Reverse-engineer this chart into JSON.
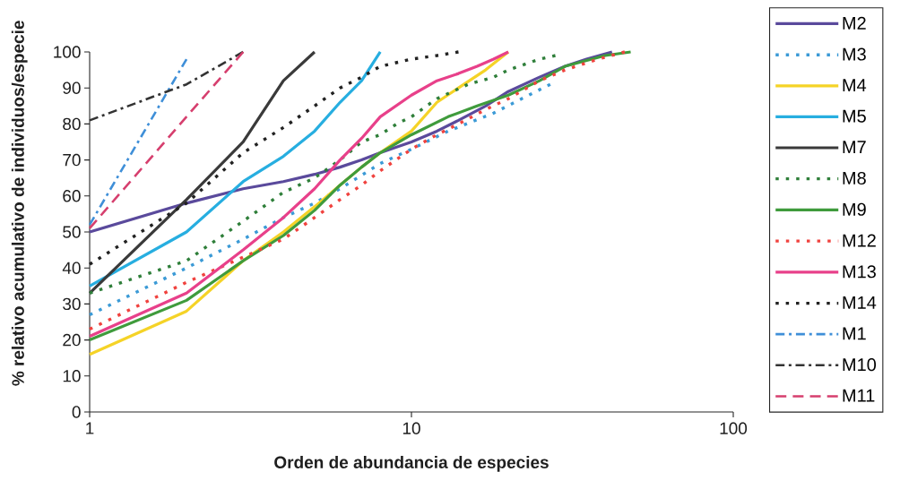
{
  "chart_data": {
    "type": "line",
    "xlabel": "Orden de abundancia de especies",
    "ylabel": "% relativo acumulativo de individuos/especie",
    "log": "x",
    "xlim": [
      1,
      100
    ],
    "xticks": [
      1,
      10,
      100
    ],
    "ylim": [
      0,
      100
    ],
    "yticks": [
      0,
      10,
      20,
      30,
      40,
      50,
      60,
      70,
      80,
      90,
      100
    ],
    "legend": "right",
    "series": [
      {
        "name": "M2",
        "color": "#5a4a9c",
        "line_style": "solid",
        "x": [
          1,
          2,
          3,
          4,
          5,
          6,
          7,
          8,
          10,
          12,
          14,
          17,
          20,
          25,
          30,
          35,
          42
        ],
        "values": [
          50,
          58,
          62,
          64,
          66,
          68,
          70,
          72,
          75,
          78,
          81,
          85,
          89,
          93,
          96,
          98,
          100
        ]
      },
      {
        "name": "M3",
        "color": "#3b9ad6",
        "line_style": "dotted",
        "x": [
          1,
          2,
          3,
          4,
          5,
          6,
          8,
          10,
          13,
          18,
          22,
          27
        ],
        "values": [
          27,
          40,
          48,
          54,
          58,
          62,
          69,
          73,
          78,
          83,
          87,
          91
        ]
      },
      {
        "name": "M4",
        "color": "#f5d327",
        "line_style": "solid",
        "x": [
          1,
          2,
          3,
          4,
          5,
          6,
          7,
          8,
          10,
          12,
          14,
          17,
          20
        ],
        "values": [
          16,
          28,
          42,
          50,
          57,
          63,
          68,
          72,
          78,
          86,
          90,
          95,
          100
        ]
      },
      {
        "name": "M5",
        "color": "#27aee0",
        "line_style": "solid",
        "x": [
          1,
          2,
          3,
          4,
          5,
          6,
          7,
          8
        ],
        "values": [
          35,
          50,
          64,
          71,
          78,
          86,
          92,
          100
        ]
      },
      {
        "name": "M7",
        "color": "#3a3a3a",
        "line_style": "solid",
        "x": [
          1,
          2,
          3,
          4,
          5
        ],
        "values": [
          33,
          59,
          75,
          92,
          100
        ]
      },
      {
        "name": "M8",
        "color": "#2f7f3a",
        "line_style": "dotted",
        "x": [
          1,
          2,
          3,
          4,
          5,
          6,
          7,
          8,
          9,
          10,
          12,
          15,
          18,
          20,
          25,
          28
        ],
        "values": [
          33,
          42,
          53,
          61,
          65,
          70,
          75,
          77,
          80,
          82,
          87,
          91,
          93,
          95,
          98,
          99
        ]
      },
      {
        "name": "M9",
        "color": "#3f9b3c",
        "line_style": "solid",
        "x": [
          1,
          2,
          3,
          4,
          5,
          6,
          7,
          8,
          10,
          13,
          16,
          20,
          25,
          30,
          40,
          48
        ],
        "values": [
          20,
          31,
          42,
          49,
          56,
          63,
          68,
          72,
          77,
          82,
          85,
          88,
          92,
          96,
          99,
          100
        ]
      },
      {
        "name": "M12",
        "color": "#f0423e",
        "line_style": "dotted",
        "x": [
          1,
          2,
          3,
          4,
          5,
          6,
          7,
          8,
          10,
          12,
          14,
          17,
          20,
          25,
          30,
          38,
          46
        ],
        "values": [
          23,
          36,
          43,
          48,
          54,
          59,
          63,
          67,
          73,
          77,
          80,
          84,
          87,
          92,
          95,
          98,
          100
        ]
      },
      {
        "name": "M13",
        "color": "#e8408a",
        "line_style": "solid",
        "x": [
          1,
          2,
          3,
          4,
          5,
          6,
          7,
          8,
          10,
          12,
          14,
          16,
          18,
          20
        ],
        "values": [
          21,
          33,
          45,
          54,
          62,
          70,
          76,
          82,
          88,
          92,
          94,
          96,
          98,
          100
        ]
      },
      {
        "name": "M14",
        "color": "#222222",
        "line_style": "dotted",
        "x": [
          1,
          2,
          3,
          4,
          5,
          6,
          7,
          8,
          10,
          12,
          14
        ],
        "values": [
          41,
          58,
          72,
          79,
          85,
          90,
          93,
          96,
          98,
          99,
          100
        ]
      },
      {
        "name": "M1",
        "color": "#3f8fd8",
        "line_style": "dashdot",
        "x": [
          1,
          2
        ],
        "values": [
          52,
          98
        ]
      },
      {
        "name": "M10",
        "color": "#333333",
        "line_style": "dashdot",
        "x": [
          1,
          2,
          3
        ],
        "values": [
          81,
          91,
          100
        ]
      },
      {
        "name": "M11",
        "color": "#d63f6e",
        "line_style": "dashed",
        "x": [
          1,
          2,
          3
        ],
        "values": [
          51,
          82,
          100
        ]
      }
    ]
  }
}
